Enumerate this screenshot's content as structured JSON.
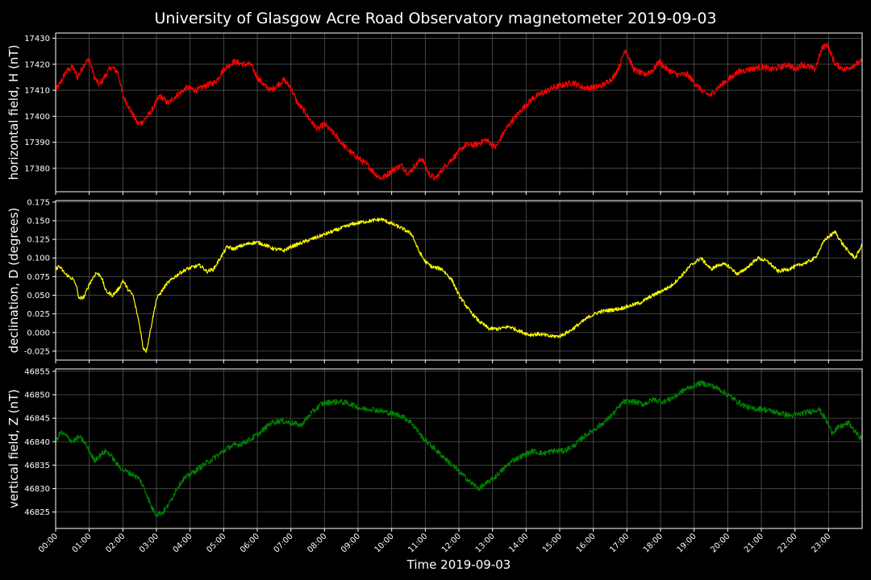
{
  "chart_data": {
    "type": "line",
    "title": "University of Glasgow Acre Road Observatory magnetometer 2019-09-03",
    "xlabel": "Time 2019-09-03",
    "x_range_hours": [
      0,
      24
    ],
    "x_ticks": [
      "00:00",
      "01:00",
      "02:00",
      "03:00",
      "04:00",
      "05:00",
      "06:00",
      "07:00",
      "08:00",
      "09:00",
      "10:00",
      "11:00",
      "12:00",
      "13:00",
      "14:00",
      "15:00",
      "16:00",
      "17:00",
      "18:00",
      "19:00",
      "20:00",
      "21:00",
      "22:00",
      "23:00"
    ],
    "x_tick_rotation": "45deg",
    "grid": true,
    "background": "#000000",
    "panels": [
      {
        "name": "H",
        "ylabel": "horizontal field, H (nT)",
        "color": "#ff0000",
        "ylim": [
          17371,
          17432
        ],
        "yticks": [
          17380,
          17390,
          17400,
          17410,
          17420,
          17430
        ],
        "noise": 1.2,
        "keypoints": [
          [
            0.0,
            17410
          ],
          [
            0.15,
            17413
          ],
          [
            0.3,
            17417
          ],
          [
            0.5,
            17419
          ],
          [
            0.65,
            17415
          ],
          [
            0.85,
            17420
          ],
          [
            1.0,
            17422
          ],
          [
            1.15,
            17415
          ],
          [
            1.3,
            17412
          ],
          [
            1.5,
            17416
          ],
          [
            1.65,
            17419
          ],
          [
            1.85,
            17417
          ],
          [
            2.0,
            17408
          ],
          [
            2.2,
            17403
          ],
          [
            2.45,
            17397
          ],
          [
            2.6,
            17398
          ],
          [
            2.85,
            17402
          ],
          [
            3.1,
            17408
          ],
          [
            3.35,
            17405
          ],
          [
            3.6,
            17408
          ],
          [
            3.9,
            17411
          ],
          [
            4.2,
            17410
          ],
          [
            4.5,
            17412
          ],
          [
            4.75,
            17413
          ],
          [
            5.0,
            17418
          ],
          [
            5.3,
            17421
          ],
          [
            5.6,
            17420
          ],
          [
            5.8,
            17420
          ],
          [
            6.0,
            17415
          ],
          [
            6.2,
            17412
          ],
          [
            6.4,
            17410
          ],
          [
            6.6,
            17412
          ],
          [
            6.8,
            17414
          ],
          [
            7.0,
            17411
          ],
          [
            7.2,
            17405
          ],
          [
            7.4,
            17402
          ],
          [
            7.6,
            17398
          ],
          [
            7.8,
            17395
          ],
          [
            8.0,
            17397
          ],
          [
            8.3,
            17393
          ],
          [
            8.5,
            17390
          ],
          [
            8.7,
            17387
          ],
          [
            9.0,
            17384
          ],
          [
            9.3,
            17381
          ],
          [
            9.5,
            17378
          ],
          [
            9.7,
            17376
          ],
          [
            9.9,
            17378
          ],
          [
            10.1,
            17380
          ],
          [
            10.3,
            17381
          ],
          [
            10.5,
            17378
          ],
          [
            10.7,
            17381
          ],
          [
            10.9,
            17384
          ],
          [
            11.1,
            17378
          ],
          [
            11.3,
            17376
          ],
          [
            11.6,
            17381
          ],
          [
            11.9,
            17385
          ],
          [
            12.2,
            17389
          ],
          [
            12.5,
            17389
          ],
          [
            12.8,
            17391
          ],
          [
            13.0,
            17389
          ],
          [
            13.1,
            17388
          ],
          [
            13.3,
            17393
          ],
          [
            13.5,
            17397
          ],
          [
            13.7,
            17400
          ],
          [
            13.9,
            17403
          ],
          [
            14.2,
            17407
          ],
          [
            14.5,
            17409
          ],
          [
            14.8,
            17411
          ],
          [
            15.1,
            17412
          ],
          [
            15.4,
            17413
          ],
          [
            15.7,
            17411
          ],
          [
            16.0,
            17411
          ],
          [
            16.3,
            17412
          ],
          [
            16.6,
            17415
          ],
          [
            16.8,
            17420
          ],
          [
            16.95,
            17426
          ],
          [
            17.2,
            17418
          ],
          [
            17.5,
            17416
          ],
          [
            17.8,
            17418
          ],
          [
            17.95,
            17421
          ],
          [
            18.2,
            17418
          ],
          [
            18.5,
            17416
          ],
          [
            18.8,
            17416
          ],
          [
            19.0,
            17413
          ],
          [
            19.3,
            17409
          ],
          [
            19.5,
            17408
          ],
          [
            19.7,
            17411
          ],
          [
            20.0,
            17414
          ],
          [
            20.3,
            17417
          ],
          [
            20.6,
            17418
          ],
          [
            21.0,
            17419
          ],
          [
            21.3,
            17418
          ],
          [
            21.6,
            17419
          ],
          [
            21.8,
            17420
          ],
          [
            22.0,
            17418
          ],
          [
            22.2,
            17420
          ],
          [
            22.4,
            17419
          ],
          [
            22.6,
            17418
          ],
          [
            22.8,
            17426
          ],
          [
            22.95,
            17428
          ],
          [
            23.2,
            17420
          ],
          [
            23.5,
            17418
          ],
          [
            23.8,
            17420
          ],
          [
            24.0,
            17421
          ]
        ]
      },
      {
        "name": "D",
        "ylabel": "declination, D (degrees)",
        "color": "#ffff00",
        "ylim": [
          -0.037,
          0.177
        ],
        "yticks": [
          -0.025,
          0.0,
          0.025,
          0.05,
          0.075,
          0.1,
          0.125,
          0.15,
          0.175
        ],
        "noise": 0.0025,
        "keypoints": [
          [
            0.0,
            0.085
          ],
          [
            0.1,
            0.089
          ],
          [
            0.3,
            0.078
          ],
          [
            0.5,
            0.072
          ],
          [
            0.6,
            0.065
          ],
          [
            0.7,
            0.045
          ],
          [
            0.85,
            0.048
          ],
          [
            1.0,
            0.065
          ],
          [
            1.2,
            0.08
          ],
          [
            1.35,
            0.076
          ],
          [
            1.5,
            0.055
          ],
          [
            1.7,
            0.05
          ],
          [
            1.9,
            0.06
          ],
          [
            2.0,
            0.07
          ],
          [
            2.15,
            0.058
          ],
          [
            2.3,
            0.05
          ],
          [
            2.5,
            0.01
          ],
          [
            2.6,
            -0.02
          ],
          [
            2.7,
            -0.025
          ],
          [
            2.85,
            0.01
          ],
          [
            3.0,
            0.045
          ],
          [
            3.15,
            0.055
          ],
          [
            3.3,
            0.065
          ],
          [
            3.5,
            0.073
          ],
          [
            3.7,
            0.08
          ],
          [
            3.9,
            0.085
          ],
          [
            4.1,
            0.088
          ],
          [
            4.3,
            0.09
          ],
          [
            4.5,
            0.082
          ],
          [
            4.7,
            0.085
          ],
          [
            4.9,
            0.1
          ],
          [
            5.1,
            0.115
          ],
          [
            5.3,
            0.112
          ],
          [
            5.5,
            0.116
          ],
          [
            5.8,
            0.12
          ],
          [
            6.0,
            0.121
          ],
          [
            6.2,
            0.118
          ],
          [
            6.5,
            0.112
          ],
          [
            6.8,
            0.11
          ],
          [
            7.0,
            0.115
          ],
          [
            7.3,
            0.12
          ],
          [
            7.6,
            0.125
          ],
          [
            7.9,
            0.13
          ],
          [
            8.2,
            0.135
          ],
          [
            8.5,
            0.14
          ],
          [
            8.8,
            0.145
          ],
          [
            9.1,
            0.148
          ],
          [
            9.4,
            0.15
          ],
          [
            9.7,
            0.152
          ],
          [
            10.0,
            0.146
          ],
          [
            10.3,
            0.14
          ],
          [
            10.6,
            0.132
          ],
          [
            10.8,
            0.11
          ],
          [
            11.0,
            0.095
          ],
          [
            11.2,
            0.088
          ],
          [
            11.5,
            0.085
          ],
          [
            11.8,
            0.07
          ],
          [
            12.0,
            0.05
          ],
          [
            12.3,
            0.03
          ],
          [
            12.6,
            0.015
          ],
          [
            12.9,
            0.005
          ],
          [
            13.2,
            0.005
          ],
          [
            13.5,
            0.008
          ],
          [
            13.8,
            0.002
          ],
          [
            14.1,
            -0.003
          ],
          [
            14.4,
            -0.002
          ],
          [
            14.7,
            -0.005
          ],
          [
            15.0,
            -0.005
          ],
          [
            15.3,
            0.002
          ],
          [
            15.6,
            0.012
          ],
          [
            15.9,
            0.022
          ],
          [
            16.2,
            0.028
          ],
          [
            16.5,
            0.03
          ],
          [
            16.8,
            0.032
          ],
          [
            17.1,
            0.036
          ],
          [
            17.4,
            0.04
          ],
          [
            17.7,
            0.048
          ],
          [
            18.0,
            0.055
          ],
          [
            18.3,
            0.062
          ],
          [
            18.6,
            0.075
          ],
          [
            18.9,
            0.09
          ],
          [
            19.2,
            0.1
          ],
          [
            19.5,
            0.085
          ],
          [
            19.8,
            0.092
          ],
          [
            20.0,
            0.09
          ],
          [
            20.3,
            0.078
          ],
          [
            20.6,
            0.088
          ],
          [
            20.9,
            0.1
          ],
          [
            21.2,
            0.095
          ],
          [
            21.5,
            0.082
          ],
          [
            21.8,
            0.085
          ],
          [
            22.1,
            0.09
          ],
          [
            22.4,
            0.095
          ],
          [
            22.6,
            0.1
          ],
          [
            22.9,
            0.125
          ],
          [
            23.2,
            0.135
          ],
          [
            23.4,
            0.12
          ],
          [
            23.6,
            0.108
          ],
          [
            23.8,
            0.1
          ],
          [
            24.0,
            0.118
          ]
        ]
      },
      {
        "name": "Z",
        "ylabel": "vertical field, Z (nT)",
        "color": "#008000",
        "ylim": [
          46821.5,
          46855.5
        ],
        "yticks": [
          46825,
          46830,
          46835,
          46840,
          46845,
          46850,
          46855
        ],
        "noise": 0.6,
        "keypoints": [
          [
            0.0,
            46840
          ],
          [
            0.15,
            46842
          ],
          [
            0.35,
            46841
          ],
          [
            0.5,
            46840
          ],
          [
            0.7,
            46841
          ],
          [
            0.85,
            46840
          ],
          [
            1.0,
            46838
          ],
          [
            1.15,
            46836
          ],
          [
            1.3,
            46837
          ],
          [
            1.5,
            46838
          ],
          [
            1.65,
            46837
          ],
          [
            1.85,
            46835
          ],
          [
            2.0,
            46834
          ],
          [
            2.3,
            46833
          ],
          [
            2.5,
            46832
          ],
          [
            2.7,
            46829
          ],
          [
            2.85,
            46826
          ],
          [
            3.0,
            46824.5
          ],
          [
            3.2,
            46825
          ],
          [
            3.4,
            46827
          ],
          [
            3.6,
            46830
          ],
          [
            3.8,
            46832
          ],
          [
            4.0,
            46833
          ],
          [
            4.3,
            46834.5
          ],
          [
            4.6,
            46836
          ],
          [
            4.9,
            46837.5
          ],
          [
            5.2,
            46839
          ],
          [
            5.5,
            46839.5
          ],
          [
            5.8,
            46840.5
          ],
          [
            6.1,
            46842
          ],
          [
            6.4,
            46844
          ],
          [
            6.7,
            46844.5
          ],
          [
            7.0,
            46844
          ],
          [
            7.3,
            46843.5
          ],
          [
            7.6,
            46846
          ],
          [
            7.9,
            46848
          ],
          [
            8.2,
            46848.5
          ],
          [
            8.5,
            46848.5
          ],
          [
            8.8,
            46848
          ],
          [
            9.1,
            46847
          ],
          [
            9.4,
            46847
          ],
          [
            9.7,
            46846.5
          ],
          [
            10.0,
            46846
          ],
          [
            10.3,
            46845.5
          ],
          [
            10.6,
            46844
          ],
          [
            10.9,
            46841
          ],
          [
            11.2,
            46839
          ],
          [
            11.5,
            46837
          ],
          [
            11.8,
            46835
          ],
          [
            12.1,
            46833
          ],
          [
            12.4,
            46831
          ],
          [
            12.6,
            46830
          ],
          [
            12.8,
            46831
          ],
          [
            13.0,
            46832
          ],
          [
            13.3,
            46834
          ],
          [
            13.6,
            46836
          ],
          [
            13.9,
            46837
          ],
          [
            14.2,
            46838
          ],
          [
            14.5,
            46837.5
          ],
          [
            14.8,
            46838
          ],
          [
            15.1,
            46838
          ],
          [
            15.4,
            46839
          ],
          [
            15.7,
            46841
          ],
          [
            16.0,
            46842.5
          ],
          [
            16.3,
            46844
          ],
          [
            16.6,
            46846
          ],
          [
            16.9,
            46848.5
          ],
          [
            17.2,
            46848.5
          ],
          [
            17.5,
            46848
          ],
          [
            17.8,
            46849
          ],
          [
            18.1,
            46848.5
          ],
          [
            18.4,
            46849.5
          ],
          [
            18.7,
            46851
          ],
          [
            19.0,
            46852
          ],
          [
            19.2,
            46852.5
          ],
          [
            19.5,
            46852
          ],
          [
            19.8,
            46851
          ],
          [
            20.1,
            46849.5
          ],
          [
            20.4,
            46848
          ],
          [
            20.7,
            46847
          ],
          [
            21.0,
            46847
          ],
          [
            21.3,
            46846.5
          ],
          [
            21.6,
            46846
          ],
          [
            21.9,
            46845.5
          ],
          [
            22.2,
            46846
          ],
          [
            22.5,
            46846.5
          ],
          [
            22.7,
            46847
          ],
          [
            22.9,
            46845
          ],
          [
            23.1,
            46842
          ],
          [
            23.3,
            46843
          ],
          [
            23.6,
            46844
          ],
          [
            23.8,
            46842
          ],
          [
            24.0,
            46840.5
          ]
        ]
      }
    ]
  }
}
